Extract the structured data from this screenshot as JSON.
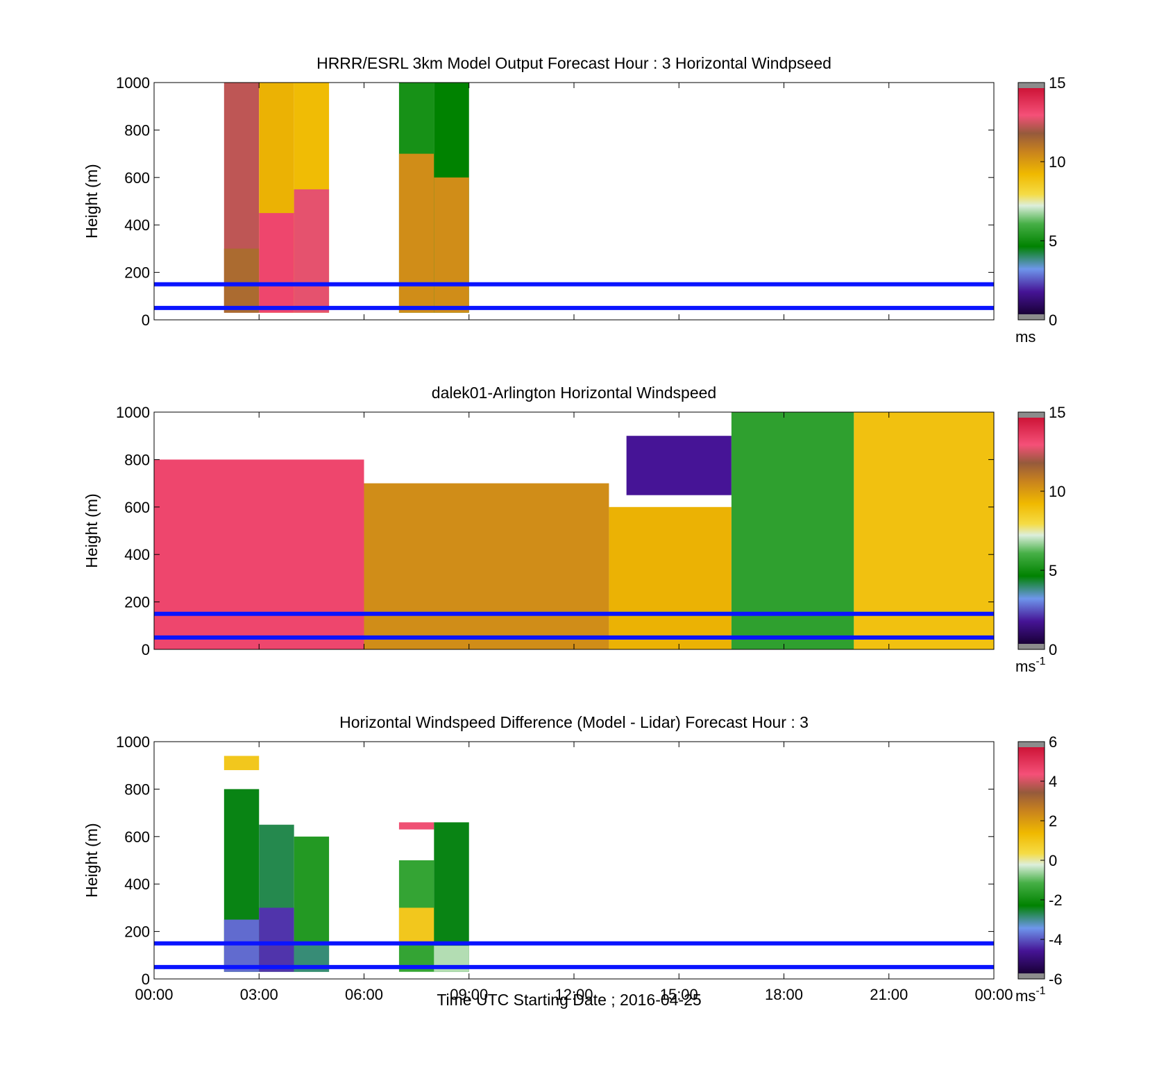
{
  "figure": {
    "xlabel": "Time UTC  Starting Date ; 2016-04-25",
    "x_tick_labels": [
      "00:00",
      "03:00",
      "06:00",
      "09:00",
      "12:00",
      "15:00",
      "18:00",
      "21:00",
      "00:00"
    ]
  },
  "chart_data": [
    {
      "type": "heatmap",
      "title": "HRRR/ESRL 3km Model Output   Forecast Hour : 3 Horizontal Windpseed",
      "ylabel": "Height (m)",
      "xlim_hours": [
        0,
        24
      ],
      "ylim": [
        0,
        1000
      ],
      "y_ticks": [
        0,
        200,
        400,
        600,
        800,
        1000
      ],
      "colorbar": {
        "ticks": [
          0,
          5,
          10,
          15
        ],
        "min": 0,
        "max": 15,
        "unit": "ms",
        "unit_sup": ""
      },
      "reference_lines_m": [
        50,
        150
      ],
      "cells": [
        {
          "t0": 2.0,
          "t1": 3.0,
          "h0": 30,
          "h1": 1000,
          "v": 12.5
        },
        {
          "t0": 2.0,
          "t1": 3.0,
          "h0": 30,
          "h1": 300,
          "v": 11.5
        },
        {
          "t0": 3.0,
          "t1": 4.0,
          "h0": 30,
          "h1": 1000,
          "v": 9.5
        },
        {
          "t0": 3.0,
          "t1": 4.0,
          "h0": 30,
          "h1": 450,
          "v": 13.5
        },
        {
          "t0": 4.0,
          "t1": 5.0,
          "h0": 30,
          "h1": 1000,
          "v": 9.2
        },
        {
          "t0": 4.0,
          "t1": 5.0,
          "h0": 30,
          "h1": 550,
          "v": 13.0
        },
        {
          "t0": 7.0,
          "t1": 8.0,
          "h0": 30,
          "h1": 1000,
          "v": 5.0
        },
        {
          "t0": 7.0,
          "t1": 8.0,
          "h0": 30,
          "h1": 700,
          "v": 10.5
        },
        {
          "t0": 8.0,
          "t1": 9.0,
          "h0": 30,
          "h1": 1000,
          "v": 4.5
        },
        {
          "t0": 8.0,
          "t1": 9.0,
          "h0": 30,
          "h1": 600,
          "v": 10.5
        }
      ]
    },
    {
      "type": "heatmap",
      "title": "dalek01-Arlington  Horizontal Windspeed",
      "ylabel": "Height (m)",
      "xlim_hours": [
        0,
        24
      ],
      "ylim": [
        0,
        1000
      ],
      "y_ticks": [
        0,
        200,
        400,
        600,
        800,
        1000
      ],
      "colorbar": {
        "ticks": [
          0,
          5,
          10,
          15
        ],
        "min": 0,
        "max": 15,
        "unit": "ms",
        "unit_sup": "-1"
      },
      "reference_lines_m": [
        50,
        150
      ],
      "cells": [
        {
          "t0": 0.0,
          "t1": 6.0,
          "h0": 0,
          "h1": 800,
          "v": 13.5
        },
        {
          "t0": 6.0,
          "t1": 13.0,
          "h0": 0,
          "h1": 700,
          "v": 10.5
        },
        {
          "t0": 13.0,
          "t1": 16.5,
          "h0": 0,
          "h1": 600,
          "v": 9.5
        },
        {
          "t0": 13.5,
          "t1": 16.5,
          "h0": 650,
          "h1": 900,
          "v": 1.5
        },
        {
          "t0": 16.5,
          "t1": 20.0,
          "h0": 0,
          "h1": 1000,
          "v": 5.5
        },
        {
          "t0": 20.0,
          "t1": 24.0,
          "h0": 0,
          "h1": 1000,
          "v": 9.0
        }
      ]
    },
    {
      "type": "heatmap",
      "title": "Horizontal Windspeed Difference (Model - Lidar) Forecast Hour : 3",
      "ylabel": "Height (m)",
      "xlim_hours": [
        0,
        24
      ],
      "ylim": [
        0,
        1000
      ],
      "y_ticks": [
        0,
        200,
        400,
        600,
        800,
        1000
      ],
      "colorbar": {
        "ticks": [
          -6,
          -4,
          -2,
          0,
          2,
          4,
          6
        ],
        "min": -6,
        "max": 6,
        "unit": "ms",
        "unit_sup": "-1"
      },
      "reference_lines_m": [
        50,
        150
      ],
      "cells": [
        {
          "t0": 2.0,
          "t1": 3.0,
          "h0": 30,
          "h1": 800,
          "v": -2.5
        },
        {
          "t0": 2.0,
          "t1": 3.0,
          "h0": 30,
          "h1": 250,
          "v": -4.0
        },
        {
          "t0": 2.0,
          "t1": 3.0,
          "h0": 880,
          "h1": 940,
          "v": 1.0
        },
        {
          "t0": 3.0,
          "t1": 4.0,
          "h0": 30,
          "h1": 650,
          "v": -2.8
        },
        {
          "t0": 3.0,
          "t1": 4.0,
          "h0": 30,
          "h1": 300,
          "v": -4.5
        },
        {
          "t0": 4.0,
          "t1": 5.0,
          "h0": 30,
          "h1": 600,
          "v": -1.8
        },
        {
          "t0": 4.0,
          "t1": 5.0,
          "h0": 30,
          "h1": 150,
          "v": -3.0
        },
        {
          "t0": 7.0,
          "t1": 8.0,
          "h0": 30,
          "h1": 500,
          "v": -1.5
        },
        {
          "t0": 7.0,
          "t1": 8.0,
          "h0": 150,
          "h1": 300,
          "v": 1.0
        },
        {
          "t0": 7.0,
          "t1": 8.0,
          "h0": 630,
          "h1": 660,
          "v": 4.5
        },
        {
          "t0": 8.0,
          "t1": 9.0,
          "h0": 30,
          "h1": 660,
          "v": -2.5
        },
        {
          "t0": 8.0,
          "t1": 9.0,
          "h0": 30,
          "h1": 140,
          "v": -0.5
        }
      ]
    }
  ]
}
